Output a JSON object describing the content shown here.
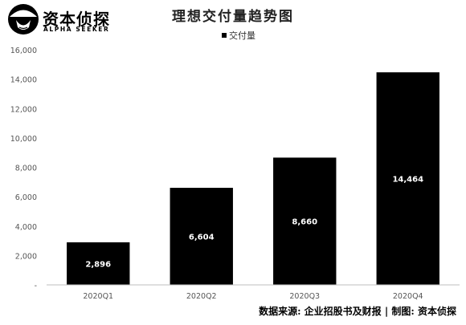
{
  "logo": {
    "name_cn": "资本侦探",
    "name_en": "ALPHA SEEKER"
  },
  "chart_data": {
    "type": "bar",
    "title": "理想交付量趋势图",
    "categories": [
      "2020Q1",
      "2020Q2",
      "2020Q3",
      "2020Q4"
    ],
    "series": [
      {
        "name": "交付量",
        "values": [
          2896,
          6604,
          8660,
          14464
        ],
        "data_labels": [
          "2,896",
          "6,604",
          "8,660",
          "14,464"
        ],
        "color": "#000000"
      }
    ],
    "ylim": [
      0,
      16000
    ],
    "yticks": [
      0,
      2000,
      4000,
      6000,
      8000,
      10000,
      12000,
      14000,
      16000
    ],
    "ytick_labels": [
      "-",
      "2,000",
      "4,000",
      "6,000",
      "8,000",
      "10,000",
      "12,000",
      "14,000",
      "16,000"
    ],
    "xlabel": "",
    "ylabel": "",
    "grid": false,
    "legend_position": "top-center"
  },
  "footer": {
    "source": "数据来源: 企业招股书及财报 | 制图: 资本侦探"
  },
  "colors": {
    "bar": "#000000",
    "label_on_bar": "#ffffff",
    "axis_text": "#555555",
    "axis_line": "#bfbfbf"
  }
}
